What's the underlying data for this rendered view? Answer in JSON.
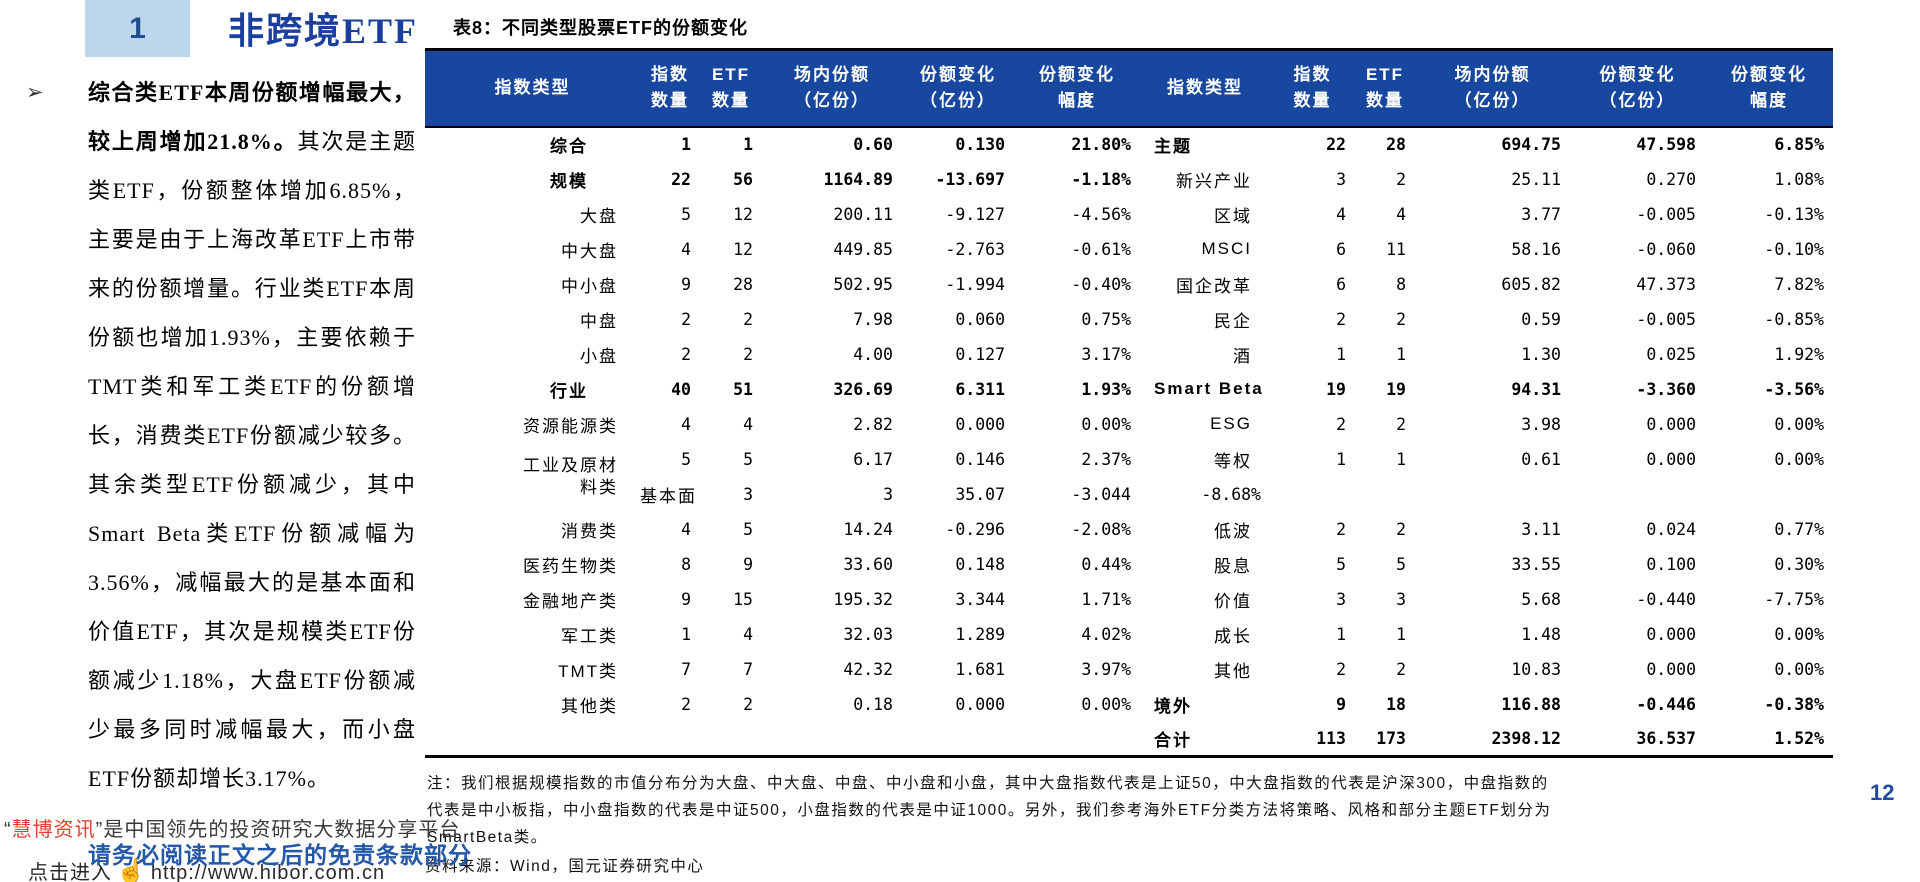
{
  "page": {
    "number": "12"
  },
  "section": {
    "number": "1",
    "title": "非跨境ETF"
  },
  "commentary": {
    "bullet": "➢",
    "lead_bold": "综合类ETF本周份额增幅最大，较上周增加21.8%。",
    "body": "其次是主题类ETF，份额整体增加6.85%，主要是由于上海改革ETF上市带来的份额增量。行业类ETF本周份额也增加1.93%，主要依赖于TMT类和军工类ETF的份额增长，消费类ETF份额减少较多。其余类型ETF份额减少，其中Smart Beta类ETF份额减幅为3.56%，减幅最大的是基本面和价值ETF，其次是规模类ETF份额减少1.18%，大盘ETF份额减少最多同时减幅最大，而小盘ETF份额却增长3.17%。"
  },
  "watermark": {
    "open_quote": "“",
    "brand": "慧博资讯",
    "close_quote": "”",
    "tagline": "是中国领先的投资研究大数据分享平台",
    "disclaimer": "请务必阅读正文之后的免责条款部分",
    "click_prefix": "点击进入",
    "hand": "☝",
    "url": "http://www.hibor.com.cn"
  },
  "table": {
    "title": "表8：不同类型股票ETF的份额变化",
    "header": {
      "index_type": "指数类型",
      "index_count_l1": "指数",
      "index_count_l2": "数量",
      "etf_count_l1": "ETF",
      "etf_count_l2": "数量",
      "shares_l1": "场内份额",
      "shares_l2": "（亿份）",
      "change_l1": "份额变化",
      "change_l2": "（亿份）",
      "pct_l1": "份额变化",
      "pct_l2": "幅度"
    },
    "rows": [
      {
        "l": {
          "label": "综合",
          "parent": true,
          "bold": true,
          "vals": [
            "1",
            "1",
            "0.60",
            "0.130",
            "21.80%"
          ]
        },
        "r": {
          "label": "主题",
          "parent": true,
          "bold": true,
          "vals": [
            "22",
            "28",
            "694.75",
            "47.598",
            "6.85%"
          ]
        }
      },
      {
        "l": {
          "label": "规模",
          "parent": true,
          "bold": true,
          "vals": [
            "22",
            "56",
            "1164.89",
            "-13.697",
            "-1.18%"
          ]
        },
        "r": {
          "label": "新兴产业",
          "vals": [
            "3",
            "2",
            "25.11",
            "0.270",
            "1.08%"
          ]
        }
      },
      {
        "l": {
          "label": "大盘",
          "vals": [
            "5",
            "12",
            "200.11",
            "-9.127",
            "-4.56%"
          ]
        },
        "r": {
          "label": "区域",
          "vals": [
            "4",
            "4",
            "3.77",
            "-0.005",
            "-0.13%"
          ]
        }
      },
      {
        "l": {
          "label": "中大盘",
          "vals": [
            "4",
            "12",
            "449.85",
            "-2.763",
            "-0.61%"
          ]
        },
        "r": {
          "label": "MSCI",
          "vals": [
            "6",
            "11",
            "58.16",
            "-0.060",
            "-0.10%"
          ]
        }
      },
      {
        "l": {
          "label": "中小盘",
          "vals": [
            "9",
            "28",
            "502.95",
            "-1.994",
            "-0.40%"
          ]
        },
        "r": {
          "label": "国企改革",
          "vals": [
            "6",
            "8",
            "605.82",
            "47.373",
            "7.82%"
          ]
        }
      },
      {
        "l": {
          "label": "中盘",
          "vals": [
            "2",
            "2",
            "7.98",
            "0.060",
            "0.75%"
          ]
        },
        "r": {
          "label": "民企",
          "vals": [
            "2",
            "2",
            "0.59",
            "-0.005",
            "-0.85%"
          ]
        }
      },
      {
        "l": {
          "label": "小盘",
          "vals": [
            "2",
            "2",
            "4.00",
            "0.127",
            "3.17%"
          ]
        },
        "r": {
          "label": "酒",
          "vals": [
            "1",
            "1",
            "1.30",
            "0.025",
            "1.92%"
          ]
        }
      },
      {
        "l": {
          "label": "行业",
          "parent": true,
          "bold": true,
          "vals": [
            "40",
            "51",
            "326.69",
            "6.311",
            "1.93%"
          ]
        },
        "r": {
          "label": "Smart Beta",
          "parent": true,
          "bold": true,
          "vals": [
            "19",
            "19",
            "94.31",
            "-3.360",
            "-3.56%"
          ]
        }
      },
      {
        "l": {
          "label": "资源能源类",
          "vals": [
            "4",
            "4",
            "2.82",
            "0.000",
            "0.00%"
          ]
        },
        "r": {
          "label": "ESG",
          "vals": [
            "2",
            "2",
            "3.98",
            "0.000",
            "0.00%"
          ]
        }
      },
      {
        "l": {
          "label": "工业及原材料类",
          "span": 2,
          "vals": [
            "5",
            "5",
            "6.17",
            "0.146",
            "2.37%"
          ]
        },
        "r": {
          "label": "等权",
          "vals": [
            "1",
            "1",
            "0.61",
            "0.000",
            "0.00%"
          ]
        }
      },
      {
        "l": "spanned",
        "r": {
          "label": "基本面",
          "vals": [
            "3",
            "3",
            "35.07",
            "-3.044",
            "-8.68%"
          ]
        }
      },
      {
        "l": {
          "label": "消费类",
          "vals": [
            "4",
            "5",
            "14.24",
            "-0.296",
            "-2.08%"
          ]
        },
        "r": {
          "label": "低波",
          "vals": [
            "2",
            "2",
            "3.11",
            "0.024",
            "0.77%"
          ]
        }
      },
      {
        "l": {
          "label": "医药生物类",
          "vals": [
            "8",
            "9",
            "33.60",
            "0.148",
            "0.44%"
          ]
        },
        "r": {
          "label": "股息",
          "vals": [
            "5",
            "5",
            "33.55",
            "0.100",
            "0.30%"
          ]
        }
      },
      {
        "l": {
          "label": "金融地产类",
          "vals": [
            "9",
            "15",
            "195.32",
            "3.344",
            "1.71%"
          ]
        },
        "r": {
          "label": "价值",
          "vals": [
            "3",
            "3",
            "5.68",
            "-0.440",
            "-7.75%"
          ]
        }
      },
      {
        "l": {
          "label": "军工类",
          "vals": [
            "1",
            "4",
            "32.03",
            "1.289",
            "4.02%"
          ]
        },
        "r": {
          "label": "成长",
          "vals": [
            "1",
            "1",
            "1.48",
            "0.000",
            "0.00%"
          ]
        }
      },
      {
        "l": {
          "label": "TMT类",
          "vals": [
            "7",
            "7",
            "42.32",
            "1.681",
            "3.97%"
          ]
        },
        "r": {
          "label": "其他",
          "vals": [
            "2",
            "2",
            "10.83",
            "0.000",
            "0.00%"
          ]
        }
      },
      {
        "l": {
          "label": "其他类",
          "vals": [
            "2",
            "2",
            "0.18",
            "0.000",
            "0.00%"
          ]
        },
        "r": {
          "label": "境外",
          "parent": true,
          "bold": true,
          "vals": [
            "9",
            "18",
            "116.88",
            "-0.446",
            "-0.38%"
          ]
        }
      },
      {
        "l": null,
        "r": {
          "label": "合计",
          "parent": true,
          "bold": true,
          "vals": [
            "113",
            "173",
            "2398.12",
            "36.537",
            "1.52%"
          ]
        }
      }
    ],
    "notes_lines": [
      "注：我们根据规模指数的市值分布分为大盘、中大盘、中盘、中小盘和小盘，其中大盘指数代表是上证50，中大盘指数的代表是沪深300，中盘指数的",
      "代表是中小板指，中小盘指数的代表是中证500，小盘指数的代表是中证1000。另外，我们参考海外ETF分类方法将策略、风格和部分主题ETF划分为",
      "SmartBeta类。"
    ],
    "source": "资料来源：Wind，国元证券研究中心"
  }
}
